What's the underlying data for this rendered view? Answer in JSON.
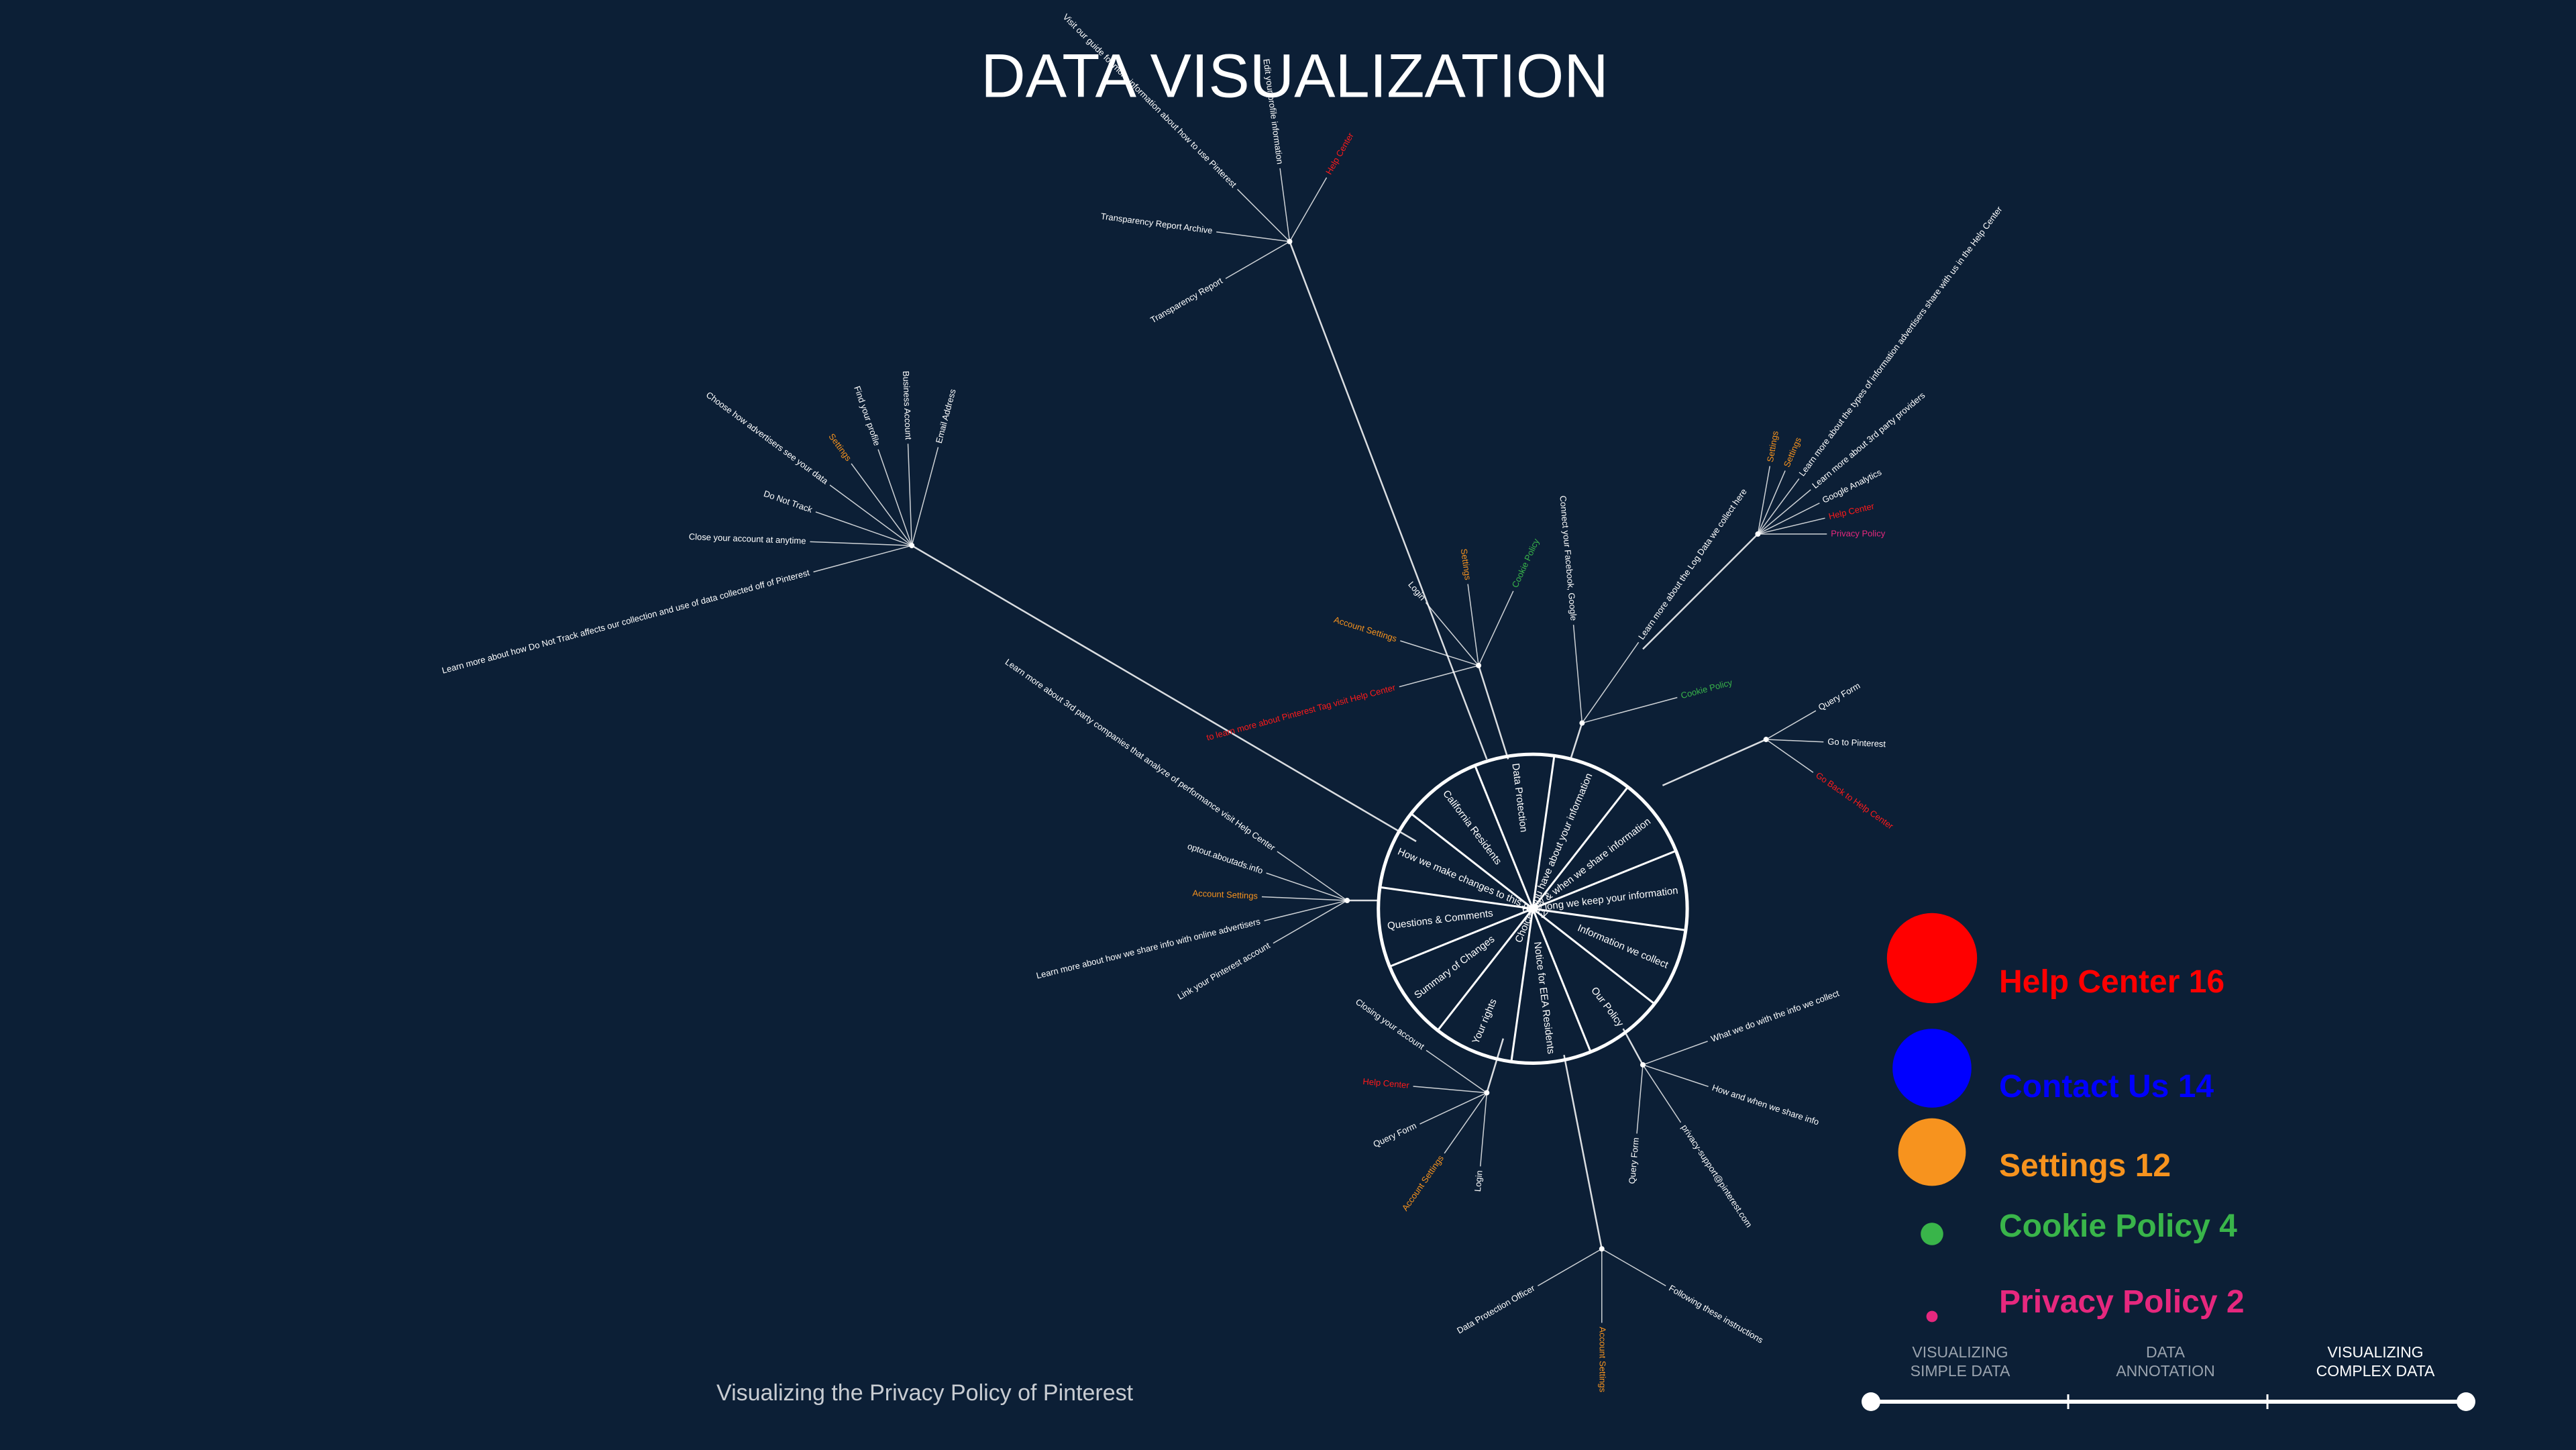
{
  "title": "DATA VISUALIZATION",
  "subtitle": "Visualizing the Privacy Policy of Pinterest",
  "sections": [
    "Choices you have about your information",
    "How & when we share information",
    "How long we keep your information",
    "Information we collect",
    "Our Policy",
    "Notice for EEA Residents",
    "Your rights",
    "Summary of Changes",
    "Questions & Comments",
    "How we make changes to this policy",
    "California Residents",
    "Data Protection"
  ],
  "clusters": [
    {
      "items": [
        {
          "text": "Learn more about how Do Not Track affects our collection and use of data collected off of Pinterest"
        },
        {
          "text": "Close your account at anytime"
        },
        {
          "text": "Do Not Track"
        },
        {
          "text": "Choose how advertisers see your data"
        },
        {
          "text": "Settings",
          "color": "#f7931e"
        },
        {
          "text": "Find your profile"
        },
        {
          "text": "Business Account"
        },
        {
          "text": "Email Address"
        }
      ]
    },
    {
      "items": [
        {
          "text": "Transparency Report"
        },
        {
          "text": "Transparency Report Archive"
        },
        {
          "text": "Visit our guide for more information about how to use Pinterest"
        },
        {
          "text": "Edit your profile information"
        },
        {
          "text": "Help Center",
          "color": "#ff1a1a"
        }
      ]
    },
    {
      "items": [
        {
          "text": "to learn more about Pinterest Tag visit Help Center",
          "color": "#ff1a1a"
        },
        {
          "text": "Account Settings",
          "color": "#f7931e"
        },
        {
          "text": "Login"
        },
        {
          "text": "Settings",
          "color": "#f7931e"
        },
        {
          "text": "Cookie Policy",
          "color": "#39b54a"
        }
      ]
    },
    {
      "items": [
        {
          "text": "Connect your Facebook, Google"
        },
        {
          "text": "Learn more about the Log Data we collect here"
        },
        {
          "text": "Cookie Policy",
          "color": "#39b54a"
        }
      ]
    },
    {
      "items": [
        {
          "text": "Settings",
          "color": "#f7931e"
        },
        {
          "text": "Settings",
          "color": "#f7931e"
        },
        {
          "text": "Learn more about the types of information advertisers share with us in the Help Center"
        },
        {
          "text": "Learn more about 3rd party providers"
        },
        {
          "text": "Google Analytics"
        },
        {
          "text": "Help Center",
          "color": "#ff1a1a"
        },
        {
          "text": "Privacy Policy",
          "color": "#e6287e"
        }
      ]
    },
    {
      "items": [
        {
          "text": "Query Form"
        },
        {
          "text": "Go to Pinterest"
        },
        {
          "text": "Go Back to Help Center",
          "color": "#ff1a1a"
        }
      ]
    },
    {
      "items": [
        {
          "text": "Link your Pinterest account"
        },
        {
          "text": "Learn more about how we share info with online advertisers"
        },
        {
          "text": "Account Settings",
          "color": "#f7931e"
        },
        {
          "text": "optout.aboutads.info"
        },
        {
          "text": "Learn more about 3rd party companies that analyze of performance visit Help Center"
        }
      ]
    },
    {
      "items": [
        {
          "text": "Login"
        },
        {
          "text": "Account Settings",
          "color": "#f7931e"
        },
        {
          "text": "Query Form"
        },
        {
          "text": "Help Center",
          "color": "#ff1a1a"
        },
        {
          "text": "Closing your account"
        }
      ]
    },
    {
      "items": [
        {
          "text": "Following these instructions"
        },
        {
          "text": "Account Settings",
          "color": "#f7931e"
        },
        {
          "text": "Data Protection Officer"
        }
      ]
    },
    {
      "items": [
        {
          "text": "What we do with the info we collect"
        },
        {
          "text": "How and when we share info"
        },
        {
          "text": "privacy-support@pinterest.com"
        },
        {
          "text": "Query Form"
        }
      ]
    }
  ],
  "legend": [
    {
      "label": "Help Center",
      "count": 16,
      "color": "#ff0000"
    },
    {
      "label": "Contact Us",
      "count": 14,
      "color": "#0000ff"
    },
    {
      "label": "Settings",
      "count": 12,
      "color": "#f7931e"
    },
    {
      "label": "Cookie Policy",
      "count": 4,
      "color": "#39b54a"
    },
    {
      "label": "Privacy Policy",
      "count": 2,
      "color": "#e6287e"
    }
  ],
  "steps": [
    {
      "lines": [
        "VISUALIZING",
        "SIMPLE DATA"
      ]
    },
    {
      "lines": [
        "DATA",
        "ANNOTATION"
      ]
    },
    {
      "lines": [
        "VISUALIZING",
        "COMPLEX DATA"
      ]
    }
  ],
  "active_step": 2
}
